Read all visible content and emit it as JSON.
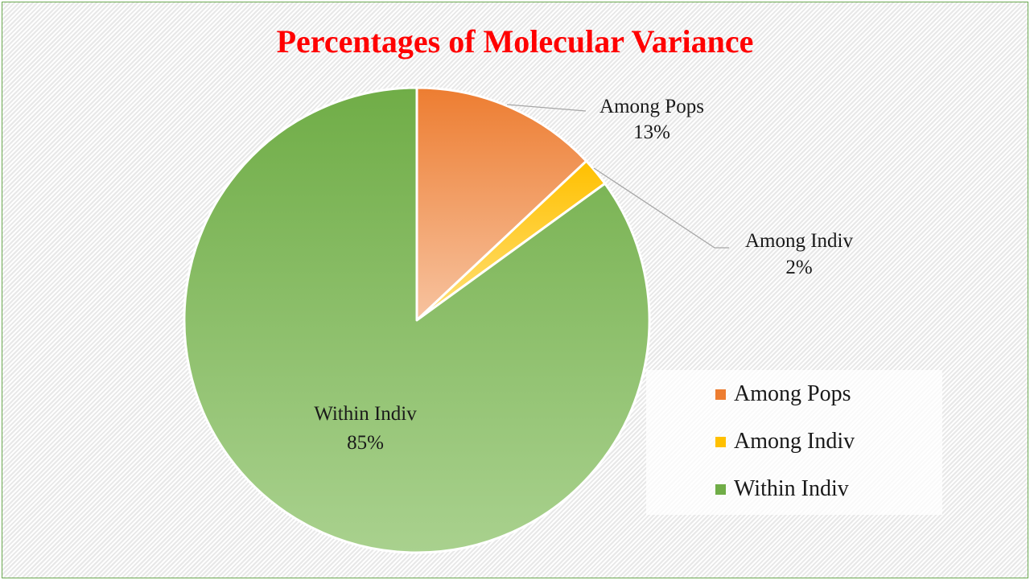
{
  "chart_data": {
    "type": "pie",
    "title": "Percentages of Molecular Variance",
    "categories": [
      "Among Pops",
      "Among Indiv",
      "Within Indiv"
    ],
    "values": [
      13,
      2,
      85
    ],
    "value_labels": [
      "13%",
      "2%",
      "85%"
    ],
    "colors": [
      "#ed7d31",
      "#ffc000",
      "#70ad47"
    ],
    "legend_position": "bottom-right"
  }
}
